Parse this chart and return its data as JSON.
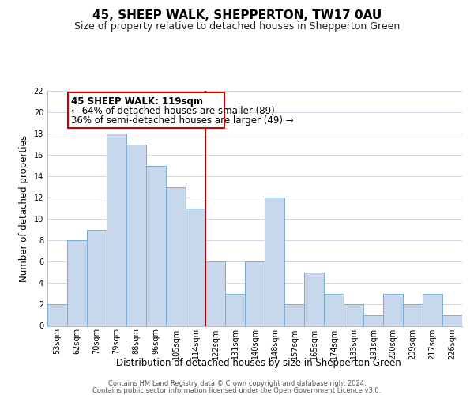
{
  "title": "45, SHEEP WALK, SHEPPERTON, TW17 0AU",
  "subtitle": "Size of property relative to detached houses in Shepperton Green",
  "xlabel": "Distribution of detached houses by size in Shepperton Green",
  "ylabel": "Number of detached properties",
  "footnote1": "Contains HM Land Registry data © Crown copyright and database right 2024.",
  "footnote2": "Contains public sector information licensed under the Open Government Licence v3.0.",
  "bin_labels": [
    "53sqm",
    "62sqm",
    "70sqm",
    "79sqm",
    "88sqm",
    "96sqm",
    "105sqm",
    "114sqm",
    "122sqm",
    "131sqm",
    "140sqm",
    "148sqm",
    "157sqm",
    "165sqm",
    "174sqm",
    "183sqm",
    "191sqm",
    "200sqm",
    "209sqm",
    "217sqm",
    "226sqm"
  ],
  "bar_heights": [
    2,
    8,
    9,
    18,
    17,
    15,
    13,
    11,
    6,
    3,
    6,
    12,
    2,
    5,
    3,
    2,
    1,
    3,
    2,
    3,
    1
  ],
  "bar_color": "#c8d8ec",
  "bar_edge_color": "#7aaed0",
  "grid_color": "#d0d8e8",
  "ylim": [
    0,
    22
  ],
  "yticks": [
    0,
    2,
    4,
    6,
    8,
    10,
    12,
    14,
    16,
    18,
    20,
    22
  ],
  "annotation_title": "45 SHEEP WALK: 119sqm",
  "annotation_line1": "← 64% of detached houses are smaller (89)",
  "annotation_line2": "36% of semi-detached houses are larger (49) →",
  "vline_x_index": 8,
  "vline_color": "#aa0000",
  "box_edge_color": "#cc0000",
  "annotation_box_facecolor": "#ffffff",
  "title_fontsize": 11,
  "subtitle_fontsize": 9,
  "annotation_fontsize": 8.5,
  "tick_fontsize": 7
}
